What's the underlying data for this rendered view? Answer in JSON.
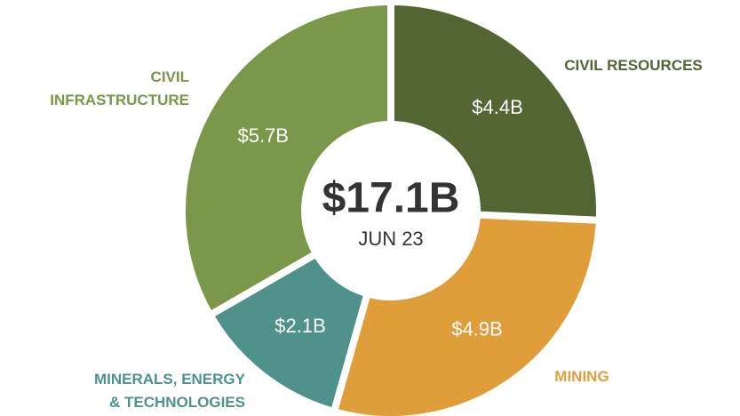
{
  "chart_data": {
    "type": "donut",
    "categories": [
      "CIVIL RESOURCES",
      "MINING",
      "MINERALS, ENERGY\n& TECHNOLOGIES",
      "CIVIL\nINFRASTRUCTURE"
    ],
    "values": [
      4.4,
      4.9,
      2.1,
      5.7
    ],
    "value_labels": [
      "$4.4B",
      "$4.9B",
      "$2.1B",
      "$5.7B"
    ],
    "colors": [
      "#536532",
      "#e09e3a",
      "#4f918b",
      "#7b9749"
    ],
    "center_title": "$17.1B",
    "center_subtitle": "JUN 23"
  }
}
